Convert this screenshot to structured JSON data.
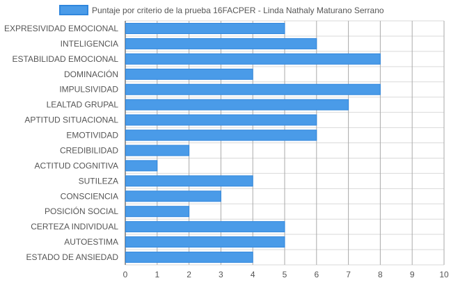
{
  "chart_data": {
    "type": "bar",
    "orientation": "horizontal",
    "categories": [
      "EXPRESIVIDAD EMOCIONAL",
      "INTELIGENCIA",
      "ESTABILIDAD EMOCIONAL",
      "DOMINACIÓN",
      "IMPULSIVIDAD",
      "LEALTAD GRUPAL",
      "APTITUD SITUACIONAL",
      "EMOTIVIDAD",
      "CREDIBILIDAD",
      "ACTITUD COGNITIVA",
      "SUTILEZA",
      "CONSCIENCIA",
      "POSICIÓN SOCIAL",
      "CERTEZA INDIVIDUAL",
      "AUTOESTIMA",
      "ESTADO DE ANSIEDAD"
    ],
    "series": [
      {
        "name": "Puntaje por criterio de la prueba 16FACPER - Linda Nathaly Maturano Serrano",
        "values": [
          5,
          6,
          8,
          4,
          8,
          7,
          6,
          6,
          2,
          1,
          4,
          3,
          2,
          5,
          5,
          4
        ]
      }
    ],
    "xlim": [
      0,
      10
    ],
    "xticks": [
      "0",
      "1",
      "2",
      "3",
      "4",
      "5",
      "6",
      "7",
      "8",
      "9",
      "10"
    ],
    "grid": true,
    "legend_position": "top",
    "colors": {
      "bar_fill": "#4a9be8",
      "bar_stroke": "#2f86dd",
      "grid": "#d9d9d9",
      "text": "#555555"
    }
  }
}
